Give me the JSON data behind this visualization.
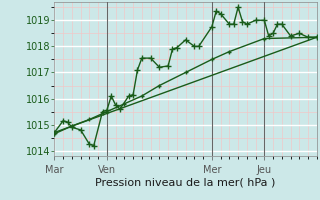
{
  "bg_color": "#cce8e8",
  "grid_major_color": "#ffffff",
  "grid_minor_color": "#f0c8c8",
  "line_color": "#1a5c1a",
  "xlabel": "Pression niveau de la mer( hPa )",
  "ylim": [
    1013.8,
    1019.7
  ],
  "yticks": [
    1014,
    1015,
    1016,
    1017,
    1018,
    1019
  ],
  "day_labels": [
    "Mar",
    "Ven",
    "Mer",
    "Jeu"
  ],
  "day_positions": [
    0,
    36,
    108,
    144
  ],
  "xlim": [
    0,
    180
  ],
  "series1_x": [
    0,
    6,
    9,
    12,
    18,
    24,
    27,
    33,
    36,
    39,
    42,
    45,
    51,
    54,
    57,
    60,
    66,
    72,
    78,
    81,
    84,
    90,
    96,
    99,
    108,
    111,
    114,
    120,
    123,
    126,
    129,
    132,
    138,
    144,
    147,
    150,
    153,
    156,
    162,
    168,
    174,
    180
  ],
  "series1_y": [
    1014.7,
    1015.15,
    1015.1,
    1014.9,
    1014.8,
    1014.25,
    1014.2,
    1015.5,
    1015.55,
    1016.1,
    1015.75,
    1015.6,
    1016.1,
    1016.15,
    1017.1,
    1017.55,
    1017.55,
    1017.2,
    1017.25,
    1017.9,
    1017.95,
    1018.25,
    1018.0,
    1018.0,
    1018.75,
    1019.35,
    1019.25,
    1018.85,
    1018.85,
    1019.5,
    1018.95,
    1018.85,
    1019.0,
    1019.0,
    1018.4,
    1018.5,
    1018.85,
    1018.85,
    1018.4,
    1018.5,
    1018.35,
    1018.35
  ],
  "series2_x": [
    0,
    12,
    24,
    36,
    48,
    60,
    72,
    90,
    108,
    120,
    144,
    180
  ],
  "series2_y": [
    1014.65,
    1014.95,
    1015.2,
    1015.5,
    1015.8,
    1016.1,
    1016.5,
    1017.0,
    1017.5,
    1017.8,
    1018.3,
    1018.35
  ],
  "series3_x": [
    0,
    180
  ],
  "series3_y": [
    1014.7,
    1018.35
  ],
  "vline_positions": [
    36,
    108,
    144
  ],
  "vline_color": "#666666"
}
